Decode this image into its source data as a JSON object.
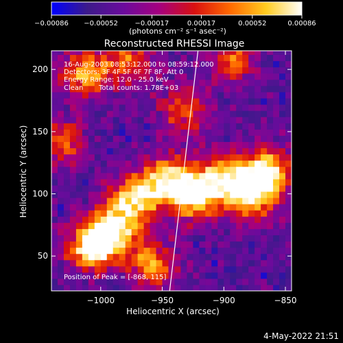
{
  "chart_data": {
    "type": "heatmap",
    "title": "Reconstructed RHESSI Image",
    "xlabel": "Heliocentric X (arcsec)",
    "ylabel": "Heliocentric Y (arcsec)",
    "xlim": [
      -1040,
      -845
    ],
    "ylim": [
      22,
      215
    ],
    "x_ticks": [
      -1000,
      -950,
      -900,
      -850
    ],
    "x_tick_labels": [
      "−1000",
      "−950",
      "−900",
      "−850"
    ],
    "y_ticks": [
      50,
      100,
      150,
      200
    ],
    "y_tick_labels": [
      "50",
      "100",
      "150",
      "200"
    ],
    "colorbar": {
      "range": [
        -0.00086,
        0.00086
      ],
      "ticks": [
        -0.00086,
        -0.00052,
        -0.00017,
        0.00017,
        0.00052,
        0.00086
      ],
      "tick_labels": [
        "−0.00086",
        "−0.00052",
        "−0.00017",
        "0.00017",
        "0.00052",
        "0.00086"
      ],
      "unit_label": "(photons cm⁻² s⁻¹ asec⁻²)",
      "colormap": [
        "#0000ff",
        "#3c1a8a",
        "#6a0b9c",
        "#a50080",
        "#d81010",
        "#ff6a00",
        "#ffcc20",
        "#ffffff"
      ]
    },
    "annotations": {
      "time": "16-Aug-2003 08:53:12.000 to 08:59:12.000",
      "detectors": "Detectors: 3F 4F 5F 6F 7F 8F, Att 0",
      "energy": "Energy Range: 12.0 - 25.0 keV",
      "clean": "Clean",
      "counts": "Total counts: 1.78E+03",
      "peak": "Position of Peak = [-868, 115]"
    },
    "hot_regions": [
      {
        "x": -1010,
        "y": 55,
        "level": 1.0
      },
      {
        "x": -990,
        "y": 70,
        "level": 0.9
      },
      {
        "x": -975,
        "y": 95,
        "level": 0.75
      },
      {
        "x": -948,
        "y": 108,
        "level": 0.9
      },
      {
        "x": -925,
        "y": 95,
        "level": 0.8
      },
      {
        "x": -905,
        "y": 110,
        "level": 0.8
      },
      {
        "x": -868,
        "y": 115,
        "level": 1.0
      },
      {
        "x": -880,
        "y": 95,
        "level": 0.8
      },
      {
        "x": -1015,
        "y": 195,
        "level": 0.7
      },
      {
        "x": -980,
        "y": 205,
        "level": 0.6
      },
      {
        "x": -935,
        "y": 165,
        "level": 0.55
      },
      {
        "x": -895,
        "y": 205,
        "level": 0.55
      },
      {
        "x": -960,
        "y": 40,
        "level": 0.7
      },
      {
        "x": -1035,
        "y": 140,
        "level": 0.55
      }
    ],
    "limb_line": {
      "x": [
        -944,
        -921
      ],
      "y": [
        22,
        215
      ]
    }
  },
  "footer": {
    "date": "4-May-2022 21:51"
  }
}
